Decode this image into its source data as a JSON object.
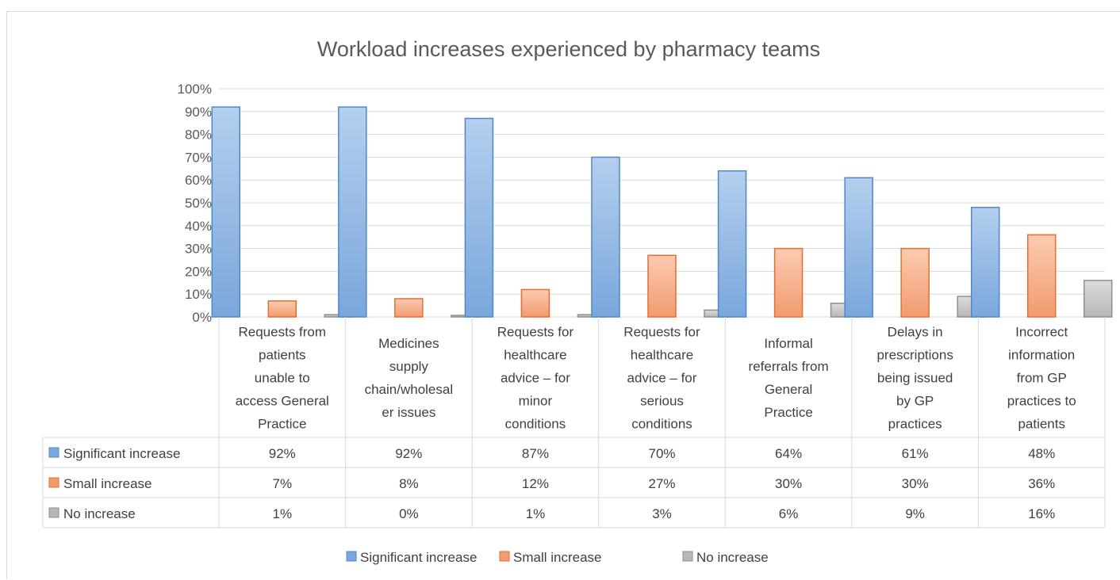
{
  "chart_data": {
    "type": "bar",
    "title": "Workload increases experienced by pharmacy teams",
    "xlabel": "",
    "ylabel": "",
    "ylim": [
      0,
      100
    ],
    "ytick_labels": [
      "0%",
      "10%",
      "20%",
      "30%",
      "40%",
      "50%",
      "60%",
      "70%",
      "80%",
      "90%",
      "100%"
    ],
    "grid": true,
    "legend_position": "bottom",
    "categories": [
      "Requests from patients unable to access General Practice",
      "Medicines supply chain/wholesaler issues",
      "Requests for healthcare advice – for minor conditions",
      "Requests for healthcare advice – for serious conditions",
      "Informal referrals from General Practice",
      "Delays in prescriptions being issued by GP practices",
      "Incorrect information from GP practices to patients"
    ],
    "category_lines": [
      [
        "Requests from",
        "patients",
        "unable to",
        "access General",
        "Practice"
      ],
      [
        "Medicines",
        "supply",
        "chain/wholesal",
        "er issues"
      ],
      [
        "Requests for",
        "healthcare",
        "advice – for",
        "minor",
        "conditions"
      ],
      [
        "Requests for",
        "healthcare",
        "advice – for",
        "serious",
        "conditions"
      ],
      [
        "Informal",
        "referrals from",
        "General",
        "Practice"
      ],
      [
        "Delays in",
        "prescriptions",
        "being issued",
        "by GP",
        "practices"
      ],
      [
        "Incorrect",
        "information",
        "from GP",
        "practices to",
        "patients"
      ]
    ],
    "series": [
      {
        "name": "Significant increase",
        "color": "#5b9bd5",
        "values": [
          92,
          92,
          87,
          70,
          64,
          61,
          48
        ],
        "labels": [
          "92%",
          "92%",
          "87%",
          "70%",
          "64%",
          "61%",
          "48%"
        ]
      },
      {
        "name": "Small increase",
        "color": "#ed7d31",
        "values": [
          7,
          8,
          12,
          27,
          30,
          30,
          36
        ],
        "labels": [
          "7%",
          "8%",
          "12%",
          "27%",
          "30%",
          "30%",
          "36%"
        ]
      },
      {
        "name": "No increase",
        "color": "#a5a5a5",
        "values": [
          1,
          0,
          1,
          3,
          6,
          9,
          16
        ],
        "labels": [
          "1%",
          "0%",
          "1%",
          "3%",
          "6%",
          "9%",
          "16%"
        ]
      }
    ],
    "colors": {
      "blue_light": "#b4cfee",
      "blue_dark": "#7aa7dc",
      "blue_stroke": "#4f88c6",
      "orange_light": "#fbcbb0",
      "orange_dark": "#f19b70",
      "orange_stroke": "#e46f35",
      "gray_light": "#dcdcdc",
      "gray_dark": "#b7b7b7",
      "gray_stroke": "#8f8f8f"
    }
  }
}
